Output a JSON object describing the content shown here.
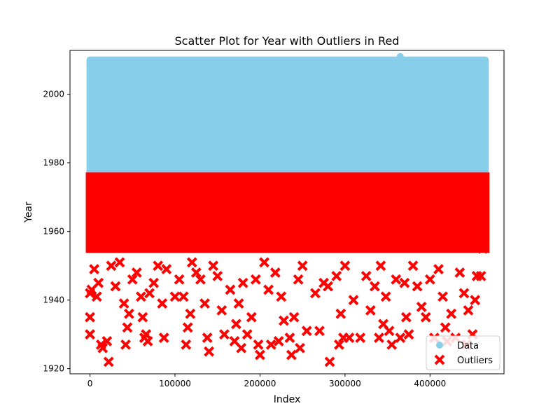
{
  "chart_data": {
    "type": "scatter",
    "title": "Scatter Plot for Year with Outliers in Red",
    "xlabel": "Index",
    "ylabel": "Year",
    "xlim": [
      -23500,
      487000
    ],
    "ylim": [
      1918.5,
      2012.8
    ],
    "xticks": [
      0,
      100000,
      200000,
      300000,
      400000
    ],
    "xtick_labels": [
      "0",
      "100000",
      "200000",
      "300000",
      "400000"
    ],
    "yticks": [
      1920,
      1940,
      1960,
      1980,
      2000
    ],
    "ytick_labels": [
      "1920",
      "1940",
      "1960",
      "1980",
      "2000"
    ],
    "grid": false,
    "legend_position": "lower-right",
    "series": [
      {
        "name": "Data",
        "marker": "circle",
        "color": "#87CEEB",
        "x_range": [
          0,
          465000
        ],
        "y_range": [
          1977,
          2010
        ],
        "note_points": [
          {
            "x": 365000,
            "y": 2011
          }
        ]
      },
      {
        "name": "Outliers",
        "marker": "x",
        "color": "#FF0000",
        "x_range": [
          0,
          465000
        ],
        "y_range": [
          1955,
          1976
        ],
        "points": [
          {
            "x": 0,
            "y": 1930
          },
          {
            "x": 0,
            "y": 1935
          },
          {
            "x": 0,
            "y": 1942
          },
          {
            "x": 2000,
            "y": 1943
          },
          {
            "x": 5000,
            "y": 1949
          },
          {
            "x": 8000,
            "y": 1941
          },
          {
            "x": 10000,
            "y": 1945
          },
          {
            "x": 13000,
            "y": 1927
          },
          {
            "x": 15000,
            "y": 1926
          },
          {
            "x": 20000,
            "y": 1928
          },
          {
            "x": 22000,
            "y": 1922
          },
          {
            "x": 25000,
            "y": 1950
          },
          {
            "x": 30000,
            "y": 1944
          },
          {
            "x": 35000,
            "y": 1951
          },
          {
            "x": 40000,
            "y": 1939
          },
          {
            "x": 42000,
            "y": 1927
          },
          {
            "x": 44000,
            "y": 1932
          },
          {
            "x": 46000,
            "y": 1936
          },
          {
            "x": 50000,
            "y": 1946
          },
          {
            "x": 55000,
            "y": 1948
          },
          {
            "x": 60000,
            "y": 1941
          },
          {
            "x": 62000,
            "y": 1935
          },
          {
            "x": 64000,
            "y": 1929
          },
          {
            "x": 66000,
            "y": 1930
          },
          {
            "x": 68000,
            "y": 1928
          },
          {
            "x": 70000,
            "y": 1942
          },
          {
            "x": 75000,
            "y": 1945
          },
          {
            "x": 80000,
            "y": 1950
          },
          {
            "x": 85000,
            "y": 1939
          },
          {
            "x": 87000,
            "y": 1929
          },
          {
            "x": 90000,
            "y": 1949
          },
          {
            "x": 100000,
            "y": 1941
          },
          {
            "x": 105000,
            "y": 1946
          },
          {
            "x": 110000,
            "y": 1941
          },
          {
            "x": 113000,
            "y": 1927
          },
          {
            "x": 115000,
            "y": 1932
          },
          {
            "x": 118000,
            "y": 1936
          },
          {
            "x": 120000,
            "y": 1951
          },
          {
            "x": 125000,
            "y": 1948
          },
          {
            "x": 130000,
            "y": 1946
          },
          {
            "x": 135000,
            "y": 1939
          },
          {
            "x": 138000,
            "y": 1929
          },
          {
            "x": 140000,
            "y": 1925
          },
          {
            "x": 145000,
            "y": 1950
          },
          {
            "x": 150000,
            "y": 1947
          },
          {
            "x": 155000,
            "y": 1937
          },
          {
            "x": 158000,
            "y": 1930
          },
          {
            "x": 165000,
            "y": 1943
          },
          {
            "x": 170000,
            "y": 1928
          },
          {
            "x": 172000,
            "y": 1933
          },
          {
            "x": 175000,
            "y": 1939
          },
          {
            "x": 178000,
            "y": 1926
          },
          {
            "x": 180000,
            "y": 1945
          },
          {
            "x": 185000,
            "y": 1930
          },
          {
            "x": 190000,
            "y": 1935
          },
          {
            "x": 195000,
            "y": 1946
          },
          {
            "x": 198000,
            "y": 1927
          },
          {
            "x": 200000,
            "y": 1924
          },
          {
            "x": 205000,
            "y": 1951
          },
          {
            "x": 210000,
            "y": 1943
          },
          {
            "x": 213000,
            "y": 1927
          },
          {
            "x": 218000,
            "y": 1948
          },
          {
            "x": 222000,
            "y": 1928
          },
          {
            "x": 225000,
            "y": 1941
          },
          {
            "x": 228000,
            "y": 1934
          },
          {
            "x": 235000,
            "y": 1929
          },
          {
            "x": 237000,
            "y": 1924
          },
          {
            "x": 240000,
            "y": 1935
          },
          {
            "x": 245000,
            "y": 1946
          },
          {
            "x": 247000,
            "y": 1926
          },
          {
            "x": 250000,
            "y": 1950
          },
          {
            "x": 255000,
            "y": 1931
          },
          {
            "x": 265000,
            "y": 1942
          },
          {
            "x": 270000,
            "y": 1931
          },
          {
            "x": 275000,
            "y": 1945
          },
          {
            "x": 280000,
            "y": 1944
          },
          {
            "x": 282000,
            "y": 1922
          },
          {
            "x": 290000,
            "y": 1947
          },
          {
            "x": 293000,
            "y": 1927
          },
          {
            "x": 295000,
            "y": 1936
          },
          {
            "x": 298000,
            "y": 1929
          },
          {
            "x": 300000,
            "y": 1950
          },
          {
            "x": 305000,
            "y": 1929
          },
          {
            "x": 310000,
            "y": 1940
          },
          {
            "x": 318000,
            "y": 1929
          },
          {
            "x": 325000,
            "y": 1947
          },
          {
            "x": 330000,
            "y": 1937
          },
          {
            "x": 335000,
            "y": 1944
          },
          {
            "x": 340000,
            "y": 1929
          },
          {
            "x": 342000,
            "y": 1950
          },
          {
            "x": 345000,
            "y": 1933
          },
          {
            "x": 348000,
            "y": 1941
          },
          {
            "x": 352000,
            "y": 1931
          },
          {
            "x": 355000,
            "y": 1927
          },
          {
            "x": 360000,
            "y": 1946
          },
          {
            "x": 365000,
            "y": 1929
          },
          {
            "x": 370000,
            "y": 1945
          },
          {
            "x": 372000,
            "y": 1935
          },
          {
            "x": 375000,
            "y": 1930
          },
          {
            "x": 380000,
            "y": 1950
          },
          {
            "x": 385000,
            "y": 1944
          },
          {
            "x": 390000,
            "y": 1938
          },
          {
            "x": 395000,
            "y": 1935
          },
          {
            "x": 400000,
            "y": 1946
          },
          {
            "x": 405000,
            "y": 1929
          },
          {
            "x": 410000,
            "y": 1949
          },
          {
            "x": 415000,
            "y": 1941
          },
          {
            "x": 418000,
            "y": 1932
          },
          {
            "x": 420000,
            "y": 1928
          },
          {
            "x": 425000,
            "y": 1936
          },
          {
            "x": 430000,
            "y": 1929
          },
          {
            "x": 435000,
            "y": 1948
          },
          {
            "x": 440000,
            "y": 1942
          },
          {
            "x": 443000,
            "y": 1927
          },
          {
            "x": 445000,
            "y": 1937
          },
          {
            "x": 450000,
            "y": 1930
          },
          {
            "x": 453000,
            "y": 1940
          },
          {
            "x": 455000,
            "y": 1947
          },
          {
            "x": 460000,
            "y": 1947
          },
          {
            "x": 462000,
            "y": 1955
          }
        ]
      }
    ]
  }
}
